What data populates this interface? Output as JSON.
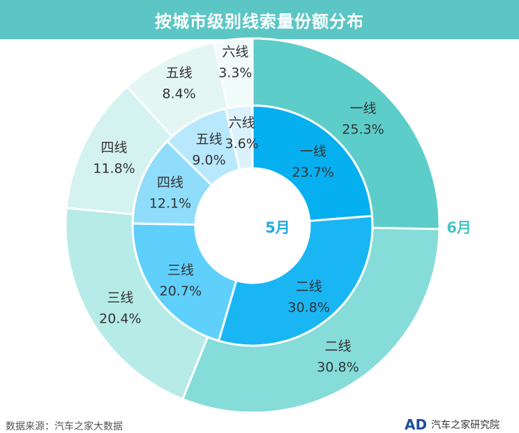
{
  "header": {
    "title": "按城市级别线索量份额分布"
  },
  "footer": {
    "source": "数据来源：汽车之家大数据",
    "brand_logo": "AD",
    "brand_name": "汽车之家研究院"
  },
  "colors": {
    "title_bar": "#5cc6c4",
    "outer": [
      "#5ccdc9",
      "#85dcd9",
      "#b6ebe8",
      "#d4f2ef",
      "#e3f6f4",
      "#f0fbfa"
    ],
    "inner": [
      "#06aff0",
      "#1ab6f4",
      "#5fd0fb",
      "#8fdcfb",
      "#b8e8fc",
      "#dbf2fd"
    ],
    "inner_label": "#22a8e0",
    "outer_label": "#45c4c1"
  },
  "chart_data": {
    "type": "pie",
    "variant": "nested-donut",
    "categories": [
      "一线",
      "二线",
      "三线",
      "四线",
      "五线",
      "六线"
    ],
    "series": [
      {
        "name": "5月",
        "ring": "inner",
        "values": [
          23.7,
          30.8,
          20.7,
          12.1,
          9.0,
          3.6
        ],
        "labels": [
          "23.7%",
          "30.8%",
          "20.7%",
          "12.1%",
          "9.0%",
          "3.6%"
        ]
      },
      {
        "name": "6月",
        "ring": "outer",
        "values": [
          25.3,
          30.8,
          20.4,
          11.8,
          8.4,
          3.3
        ],
        "labels": [
          "25.3%",
          "30.8%",
          "20.4%",
          "11.8%",
          "8.4%",
          "3.3%"
        ]
      }
    ]
  }
}
